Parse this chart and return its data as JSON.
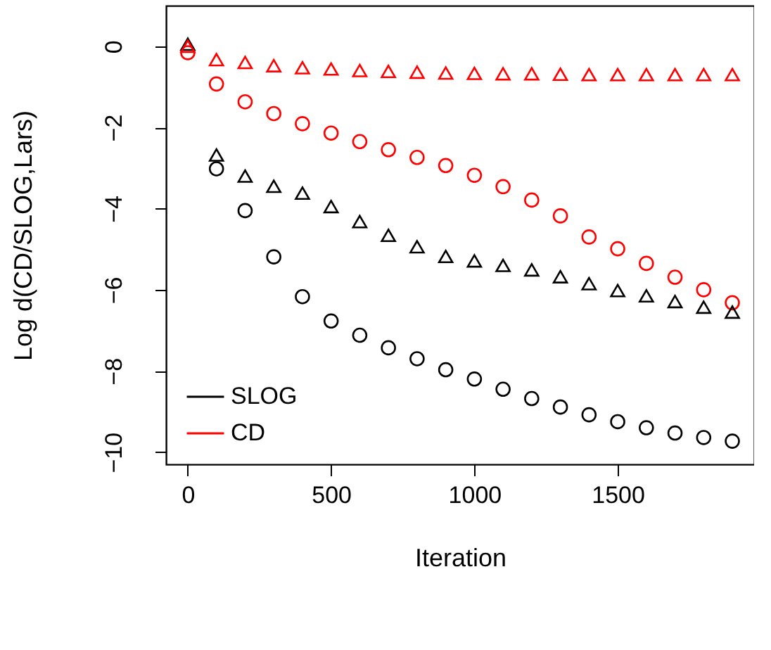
{
  "chart_data": {
    "type": "scatter",
    "xlabel": "Iteration",
    "ylabel": "Log d(CD/SLOG,Lars)",
    "x": [
      0,
      100,
      200,
      300,
      400,
      500,
      600,
      700,
      800,
      900,
      1000,
      1100,
      1200,
      1300,
      1400,
      1500,
      1600,
      1700,
      1800,
      1900
    ],
    "xlim": [
      -76,
      1976
    ],
    "xticks": [
      0,
      500,
      1000,
      1500
    ],
    "ylim": [
      -10.3,
      1.0
    ],
    "yticks": [
      -10,
      -8,
      -6,
      -4,
      -2,
      0
    ],
    "grid": false,
    "legend": "bottom left",
    "series": [
      {
        "name": "SLOG",
        "color": "#000000",
        "marker": "circle",
        "values": [
          null,
          -3.02,
          -4.05,
          -5.19,
          -6.17,
          -6.77,
          -7.12,
          -7.43,
          -7.7,
          -7.97,
          -8.2,
          -8.45,
          -8.68,
          -8.89,
          -9.08,
          -9.25,
          -9.4,
          -9.53,
          -9.64,
          -9.73
        ]
      },
      {
        "name": "CD",
        "color": "#ff0000",
        "marker": "circle",
        "values": [
          -0.16,
          -0.93,
          -1.37,
          -1.66,
          -1.91,
          -2.14,
          -2.35,
          -2.55,
          -2.74,
          -2.94,
          -3.18,
          -3.46,
          -3.79,
          -4.18,
          -4.7,
          -4.99,
          -5.35,
          -5.69,
          -6.0,
          -6.32
        ]
      },
      {
        "color": "#000000",
        "marker": "triangle",
        "values": [
          0.05,
          -2.68,
          -3.2,
          -3.45,
          -3.62,
          -3.95,
          -4.32,
          -4.66,
          -4.94,
          -5.18,
          -5.29,
          -5.4,
          -5.51,
          -5.68,
          -5.85,
          -6.02,
          -6.15,
          -6.29,
          -6.43,
          -6.55
        ]
      },
      {
        "color": "#ff0000",
        "marker": "triangle",
        "values": [
          0.0,
          -0.33,
          -0.4,
          -0.48,
          -0.53,
          -0.56,
          -0.6,
          -0.62,
          -0.64,
          -0.66,
          -0.67,
          -0.68,
          -0.68,
          -0.69,
          -0.7,
          -0.7,
          -0.7,
          -0.7,
          -0.7,
          -0.7
        ]
      }
    ]
  }
}
